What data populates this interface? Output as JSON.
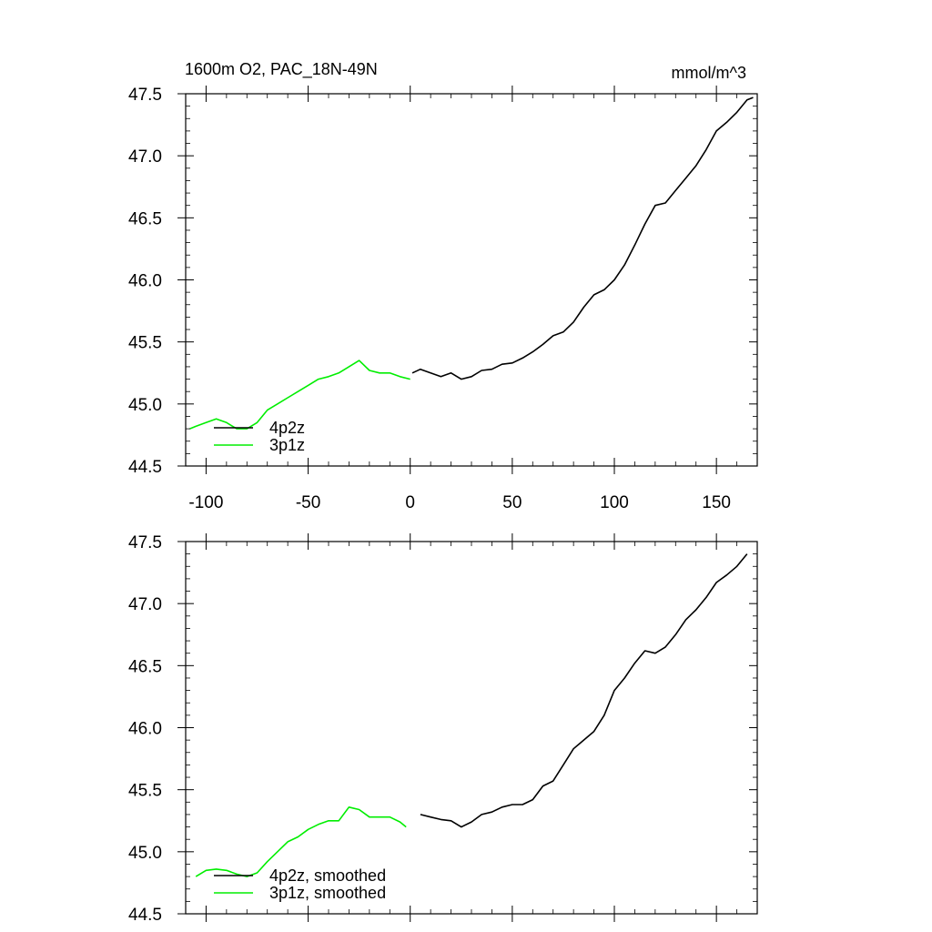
{
  "chart_data": [
    {
      "type": "line",
      "title": "1600m O2, PAC_18N-49N",
      "units": "mmol/m^3",
      "xlim": [
        -110,
        170
      ],
      "ylim": [
        44.5,
        47.5
      ],
      "xticks": [
        -100,
        -50,
        0,
        50,
        100,
        150
      ],
      "xtick_labels": [
        "-100",
        "-50",
        "0",
        "50",
        "100",
        "150"
      ],
      "yticks": [
        44.5,
        45.0,
        45.5,
        46.0,
        46.5,
        47.0,
        47.5
      ],
      "ytick_labels": [
        "44.5",
        "45.0",
        "45.5",
        "46.0",
        "46.5",
        "47.0",
        "47.5"
      ],
      "legend_position": "bottom-left",
      "series": [
        {
          "name": "4p2z",
          "color": "#000000",
          "x": [
            1,
            5,
            10,
            15,
            20,
            25,
            30,
            35,
            40,
            45,
            50,
            55,
            60,
            65,
            70,
            75,
            80,
            85,
            90,
            95,
            100,
            105,
            110,
            115,
            120,
            125,
            130,
            135,
            140,
            145,
            150,
            155,
            160,
            165,
            168
          ],
          "y": [
            45.25,
            45.28,
            45.25,
            45.22,
            45.25,
            45.2,
            45.22,
            45.27,
            45.28,
            45.32,
            45.33,
            45.37,
            45.42,
            45.48,
            45.55,
            45.58,
            45.66,
            45.78,
            45.88,
            45.92,
            46.0,
            46.12,
            46.28,
            46.45,
            46.6,
            46.62,
            46.72,
            46.82,
            46.92,
            47.05,
            47.2,
            47.27,
            47.35,
            47.45,
            47.47
          ]
        },
        {
          "name": "3p1z",
          "color": "#00ee00",
          "x": [
            -108,
            -105,
            -100,
            -95,
            -90,
            -85,
            -80,
            -75,
            -70,
            -65,
            -60,
            -55,
            -50,
            -45,
            -40,
            -35,
            -30,
            -25,
            -20,
            -15,
            -10,
            -5,
            0
          ],
          "y": [
            44.8,
            44.82,
            44.85,
            44.88,
            44.85,
            44.8,
            44.8,
            44.85,
            44.95,
            45.0,
            45.05,
            45.1,
            45.15,
            45.2,
            45.22,
            45.25,
            45.3,
            45.35,
            45.27,
            45.25,
            45.25,
            45.22,
            45.2
          ]
        }
      ]
    },
    {
      "type": "line",
      "xlim": [
        -110,
        170
      ],
      "ylim": [
        44.5,
        47.5
      ],
      "xticks": [
        -100,
        -50,
        0,
        50,
        100,
        150
      ],
      "yticks": [
        44.5,
        45.0,
        45.5,
        46.0,
        46.5,
        47.0,
        47.5
      ],
      "ytick_labels": [
        "44.5",
        "45.0",
        "45.5",
        "46.0",
        "46.5",
        "47.0",
        "47.5"
      ],
      "legend_position": "bottom-left",
      "series": [
        {
          "name": "4p2z, smoothed",
          "color": "#000000",
          "x": [
            5,
            10,
            15,
            20,
            25,
            30,
            35,
            40,
            45,
            50,
            55,
            60,
            65,
            70,
            75,
            80,
            85,
            90,
            95,
            100,
            105,
            110,
            115,
            120,
            125,
            130,
            135,
            140,
            145,
            150,
            155,
            160,
            165
          ],
          "y": [
            45.3,
            45.28,
            45.26,
            45.25,
            45.2,
            45.24,
            45.3,
            45.32,
            45.36,
            45.38,
            45.38,
            45.42,
            45.53,
            45.57,
            45.7,
            45.83,
            45.9,
            45.97,
            46.1,
            46.3,
            46.4,
            46.52,
            46.62,
            46.6,
            46.65,
            46.75,
            46.87,
            46.95,
            47.05,
            47.17,
            47.23,
            47.3,
            47.4
          ]
        },
        {
          "name": "3p1z, smoothed",
          "color": "#00ee00",
          "x": [
            -105,
            -100,
            -95,
            -90,
            -85,
            -80,
            -75,
            -70,
            -65,
            -60,
            -55,
            -50,
            -45,
            -40,
            -35,
            -30,
            -25,
            -20,
            -15,
            -10,
            -5,
            -2
          ],
          "y": [
            44.8,
            44.85,
            44.86,
            44.85,
            44.82,
            44.8,
            44.83,
            44.92,
            45.0,
            45.08,
            45.12,
            45.18,
            45.22,
            45.25,
            45.25,
            45.36,
            45.34,
            45.28,
            45.28,
            45.28,
            45.24,
            45.2
          ]
        }
      ]
    }
  ]
}
